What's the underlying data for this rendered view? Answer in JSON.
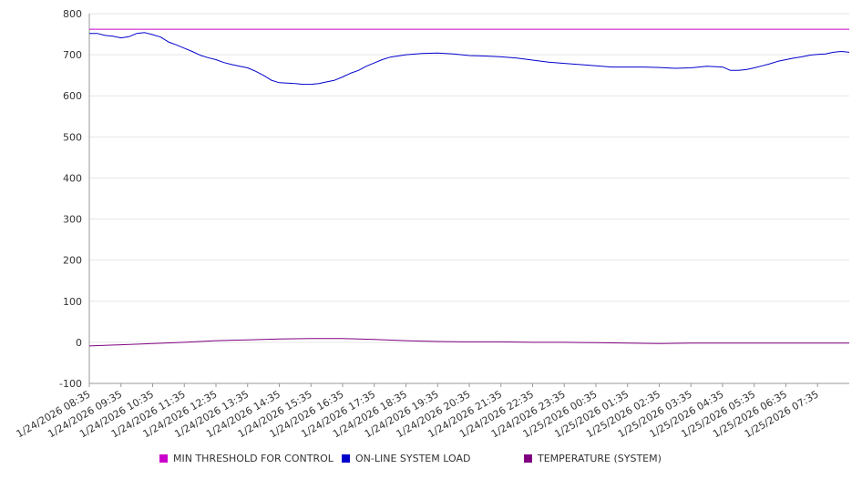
{
  "chart_data": {
    "type": "line",
    "ylim": [
      -100,
      800
    ],
    "y_ticks": [
      -100,
      0,
      100,
      200,
      300,
      400,
      500,
      600,
      700,
      800
    ],
    "grid": true,
    "legend_position": "bottom",
    "x_tick_labels": [
      "1/24/2026 08:35",
      "1/24/2026 09:35",
      "1/24/2026 10:35",
      "1/24/2026 11:35",
      "1/24/2026 12:35",
      "1/24/2026 13:35",
      "1/24/2026 14:35",
      "1/24/2026 15:35",
      "1/24/2026 16:35",
      "1/24/2026 17:35",
      "1/24/2026 18:35",
      "1/24/2026 19:35",
      "1/24/2026 20:35",
      "1/24/2026 21:35",
      "1/24/2026 22:35",
      "1/24/2026 23:35",
      "1/25/2026 00:35",
      "1/25/2026 01:35",
      "1/25/2026 02:35",
      "1/25/2026 03:35",
      "1/25/2026 04:35",
      "1/25/2026 05:35",
      "1/25/2026 06:35",
      "1/25/2026 07:35"
    ],
    "series": [
      {
        "name": "MIN THRESHOLD FOR CONTROL",
        "color": "#cc00cc",
        "x": [
          "1/24/2026 08:35",
          "1/25/2026 08:35"
        ],
        "values": [
          762,
          762
        ]
      },
      {
        "name": "ON-LINE SYSTEM LOAD",
        "color": "#0000cc",
        "x": [
          "1/24/2026 08:35",
          "1/24/2026 08:50",
          "1/24/2026 09:05",
          "1/24/2026 09:20",
          "1/24/2026 09:35",
          "1/24/2026 09:50",
          "1/24/2026 10:05",
          "1/24/2026 10:20",
          "1/24/2026 10:35",
          "1/24/2026 10:50",
          "1/24/2026 11:05",
          "1/24/2026 11:20",
          "1/24/2026 11:35",
          "1/24/2026 11:50",
          "1/24/2026 12:05",
          "1/24/2026 12:20",
          "1/24/2026 12:35",
          "1/24/2026 12:50",
          "1/24/2026 13:05",
          "1/24/2026 13:20",
          "1/24/2026 13:35",
          "1/24/2026 13:50",
          "1/24/2026 14:05",
          "1/24/2026 14:20",
          "1/24/2026 14:35",
          "1/24/2026 14:50",
          "1/24/2026 15:05",
          "1/24/2026 15:20",
          "1/24/2026 15:35",
          "1/24/2026 15:50",
          "1/24/2026 16:05",
          "1/24/2026 16:20",
          "1/24/2026 16:35",
          "1/24/2026 16:50",
          "1/24/2026 17:05",
          "1/24/2026 17:20",
          "1/24/2026 17:35",
          "1/24/2026 17:50",
          "1/24/2026 18:05",
          "1/24/2026 18:35",
          "1/24/2026 19:05",
          "1/24/2026 19:35",
          "1/24/2026 20:05",
          "1/24/2026 20:35",
          "1/24/2026 21:05",
          "1/24/2026 21:35",
          "1/24/2026 22:05",
          "1/24/2026 22:35",
          "1/24/2026 23:05",
          "1/24/2026 23:35",
          "1/25/2026 00:05",
          "1/25/2026 00:35",
          "1/25/2026 01:05",
          "1/25/2026 01:35",
          "1/25/2026 02:05",
          "1/25/2026 02:35",
          "1/25/2026 03:05",
          "1/25/2026 03:35",
          "1/25/2026 04:05",
          "1/25/2026 04:35",
          "1/25/2026 04:50",
          "1/25/2026 05:05",
          "1/25/2026 05:20",
          "1/25/2026 05:35",
          "1/25/2026 05:50",
          "1/25/2026 06:05",
          "1/25/2026 06:20",
          "1/25/2026 06:35",
          "1/25/2026 06:50",
          "1/25/2026 07:05",
          "1/25/2026 07:20",
          "1/25/2026 07:35",
          "1/25/2026 07:50",
          "1/25/2026 08:05",
          "1/25/2026 08:20",
          "1/25/2026 08:35"
        ],
        "values": [
          752,
          752,
          747,
          745,
          741,
          744,
          752,
          754,
          749,
          743,
          731,
          724,
          716,
          708,
          699,
          693,
          688,
          681,
          676,
          672,
          668,
          660,
          650,
          638,
          632,
          631,
          630,
          628,
          628,
          630,
          634,
          638,
          646,
          655,
          662,
          672,
          680,
          688,
          694,
          700,
          703,
          704,
          702,
          698,
          697,
          695,
          692,
          687,
          682,
          679,
          676,
          673,
          670,
          670,
          670,
          669,
          667,
          668,
          672,
          670,
          662,
          662,
          664,
          668,
          673,
          678,
          684,
          688,
          692,
          695,
          699,
          701,
          702,
          706,
          708,
          706
        ]
      },
      {
        "name": "TEMPERATURE (SYSTEM)",
        "color": "#800080",
        "x": [
          "1/24/2026 08:35",
          "1/24/2026 09:35",
          "1/24/2026 10:35",
          "1/24/2026 11:35",
          "1/24/2026 12:35",
          "1/24/2026 13:35",
          "1/24/2026 14:35",
          "1/24/2026 15:35",
          "1/24/2026 16:35",
          "1/24/2026 17:35",
          "1/24/2026 18:35",
          "1/24/2026 19:35",
          "1/24/2026 20:35",
          "1/24/2026 21:35",
          "1/24/2026 22:35",
          "1/24/2026 23:35",
          "1/25/2026 00:35",
          "1/25/2026 01:35",
          "1/25/2026 02:35",
          "1/25/2026 03:35",
          "1/25/2026 04:35",
          "1/25/2026 05:35",
          "1/25/2026 06:35",
          "1/25/2026 07:35",
          "1/25/2026 08:35"
        ],
        "values": [
          -9,
          -6,
          -3,
          0,
          4,
          6,
          8,
          9,
          9,
          7,
          4,
          2,
          1,
          1,
          0,
          0,
          -1,
          -2,
          -3,
          -2,
          -2,
          -2,
          -2,
          -2,
          -2
        ]
      }
    ]
  }
}
